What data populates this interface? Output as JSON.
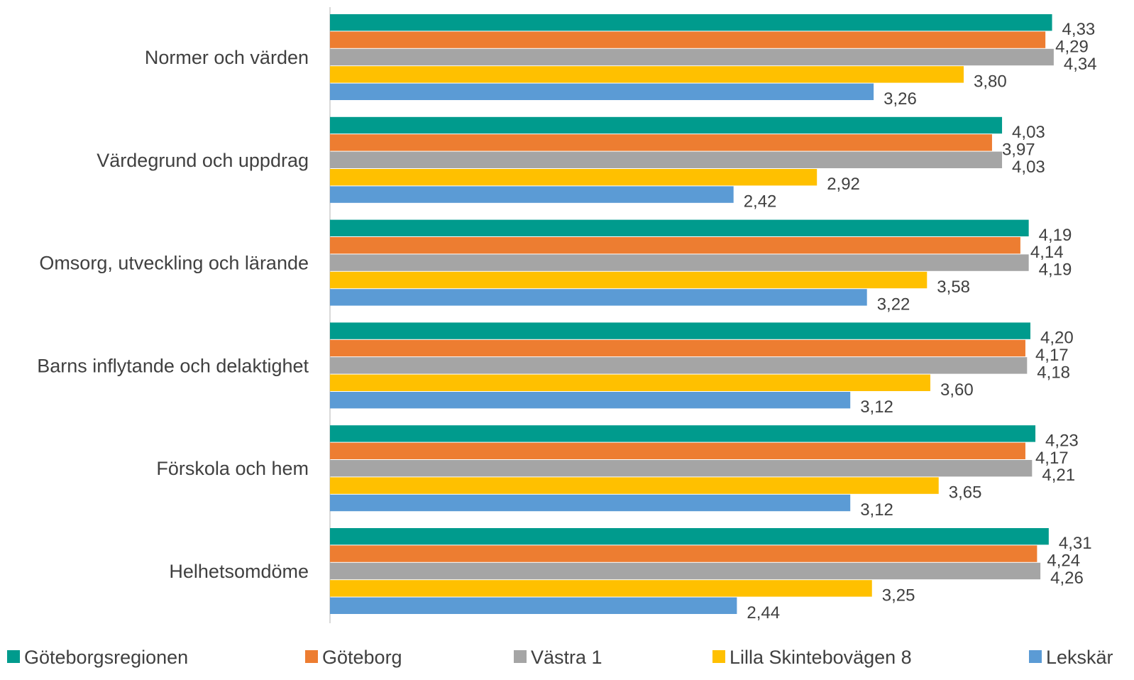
{
  "chart_data": {
    "type": "bar",
    "orientation": "horizontal",
    "categories": [
      "Normer och värden",
      "Värdegrund och uppdrag",
      "Omsorg, utveckling och lärande",
      "Barns inflytande och delaktighet",
      "Förskola och hem",
      "Helhetsomdöme"
    ],
    "series": [
      {
        "name": "Göteborgsregionen",
        "color": "#009B8D",
        "values": [
          4.33,
          4.03,
          4.19,
          4.2,
          4.23,
          4.31
        ],
        "labels": [
          "4,33",
          "4,03",
          "4,19",
          "4,20",
          "4,23",
          "4,31"
        ]
      },
      {
        "name": "Göteborg",
        "color": "#ED7D31",
        "values": [
          4.29,
          3.97,
          4.14,
          4.17,
          4.17,
          4.24
        ],
        "labels": [
          "4,29",
          "3,97",
          "4,14",
          "4,17",
          "4,17",
          "4,24"
        ]
      },
      {
        "name": "Västra 1",
        "color": "#A5A5A5",
        "values": [
          4.34,
          4.03,
          4.19,
          4.18,
          4.21,
          4.26
        ],
        "labels": [
          "4,34",
          "4,03",
          "4,19",
          "4,18",
          "4,21",
          "4,26"
        ]
      },
      {
        "name": "Lilla Skintebovägen 8",
        "color": "#FFC000",
        "values": [
          3.8,
          2.92,
          3.58,
          3.6,
          3.65,
          3.25
        ],
        "labels": [
          "3,80",
          "2,92",
          "3,58",
          "3,60",
          "3,65",
          "3,25"
        ]
      },
      {
        "name": "Lekskär",
        "color": "#5B9BD5",
        "values": [
          3.26,
          2.42,
          3.22,
          3.12,
          3.12,
          2.44
        ],
        "labels": [
          "3,26",
          "2,42",
          "3,22",
          "3,12",
          "3,12",
          "2,44"
        ]
      }
    ],
    "xlim": [
      0,
      4.6
    ],
    "grid": false,
    "legend": "bottom",
    "data_labels": true
  }
}
